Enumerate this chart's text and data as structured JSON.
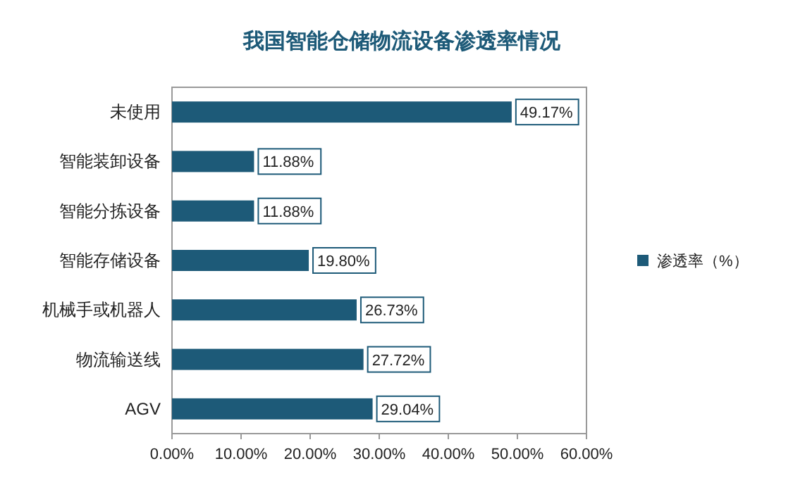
{
  "chart_data": {
    "type": "bar",
    "orientation": "horizontal",
    "title": "我国智能仓储物流设备渗透率情况",
    "categories": [
      "未使用",
      "智能装卸设备",
      "智能分拣设备",
      "智能存储设备",
      "机械手或机器人",
      "物流输送线",
      "AGV"
    ],
    "series": [
      {
        "name": "渗透率（%）",
        "color": "#1d5a78",
        "values": [
          49.17,
          11.88,
          11.88,
          19.8,
          26.73,
          27.72,
          29.04
        ],
        "value_labels": [
          "49.17%",
          "11.88%",
          "11.88%",
          "19.80%",
          "26.73%",
          "27.72%",
          "29.04%"
        ]
      }
    ],
    "xlim": [
      0,
      60
    ],
    "xticks": [
      {
        "value": 0,
        "label": "0.00%"
      },
      {
        "value": 10,
        "label": "10.00%"
      },
      {
        "value": 20,
        "label": "20.00%"
      },
      {
        "value": 30,
        "label": "30.00%"
      },
      {
        "value": 40,
        "label": "40.00%"
      },
      {
        "value": 50,
        "label": "50.00%"
      },
      {
        "value": 60,
        "label": "60.00%"
      }
    ],
    "legend": "right",
    "grid": false
  }
}
